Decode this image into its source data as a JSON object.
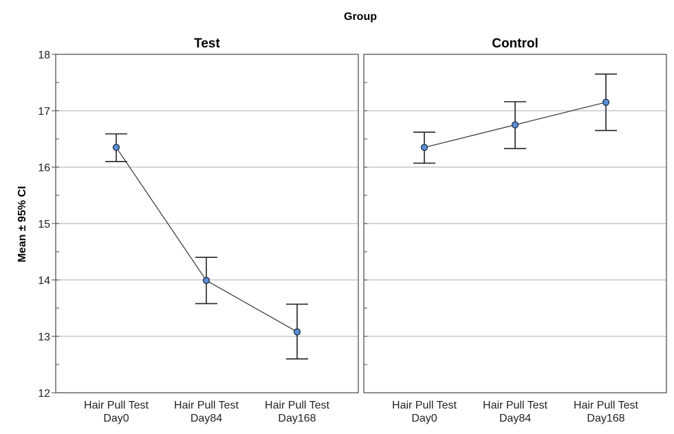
{
  "chart_data": {
    "type": "line",
    "title": "Group",
    "ylabel": "Mean ± 95% CI",
    "ylim": [
      12,
      18
    ],
    "yticks": [
      "12",
      "13",
      "14",
      "15",
      "16",
      "17",
      "18"
    ],
    "categories": [
      [
        "Hair Pull Test",
        "Day0"
      ],
      [
        "Hair Pull Test",
        "Day84"
      ],
      [
        "Hair Pull Test",
        "Day168"
      ]
    ],
    "gridlines": true,
    "panels": [
      {
        "name": "Test",
        "mean": [
          16.35,
          13.99,
          13.08
        ],
        "ci_low": [
          16.1,
          13.58,
          12.6
        ],
        "ci_high": [
          16.59,
          14.4,
          13.57
        ]
      },
      {
        "name": "Control",
        "mean": [
          16.35,
          16.75,
          17.15
        ],
        "ci_low": [
          16.07,
          16.33,
          16.65
        ],
        "ci_high": [
          16.62,
          17.16,
          17.65
        ]
      }
    ],
    "colors": {
      "marker_fill": "#5b8fd6",
      "marker_stroke": "#1f2f4a",
      "line": "#333333",
      "grid": "#c9c6d0",
      "frame": "#444444"
    }
  }
}
